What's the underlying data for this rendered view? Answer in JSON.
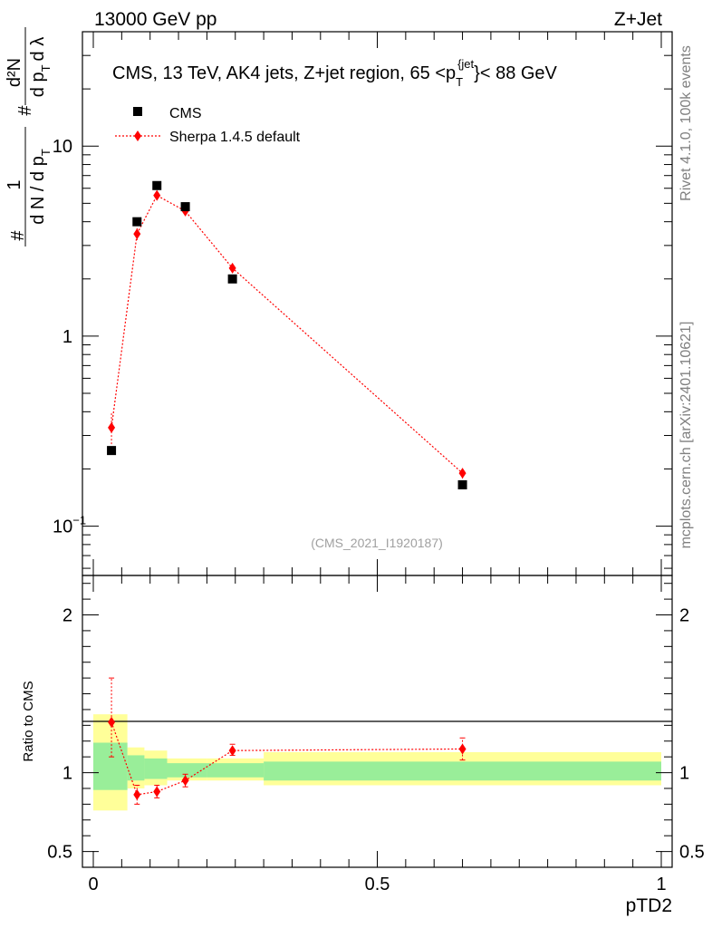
{
  "header": {
    "energy": "13000 GeV pp",
    "process": "Z+Jet",
    "side_rivet": "Rivet 4.1.0,  100k events",
    "side_site": "mcplots.cern.ch [arXiv:2401.10621]",
    "reference": "(CMS_2021_I1920187)"
  },
  "chart_data": {
    "type": "scatter",
    "title_parts": {
      "pre": "CMS, 13 TeV, AK4 jets, Z+jet region, 65 <p",
      "sub": "T",
      "sup": "{jet",
      "post": "}< 88 GeV"
    },
    "xlabel": "pTD2",
    "xlim": [
      0,
      1
    ],
    "x_ticks": [
      {
        "value": 0,
        "label": "0"
      },
      {
        "value": 0.5,
        "label": "0.5"
      },
      {
        "value": 1,
        "label": "1"
      }
    ],
    "main": {
      "yscale": "log",
      "ylim": [
        0.055,
        40
      ],
      "y_ticks": [
        {
          "value": 0.1,
          "label": "10",
          "sup": "−1"
        },
        {
          "value": 1,
          "label": "1"
        },
        {
          "value": 10,
          "label": "10"
        }
      ],
      "ylabel_parts": {
        "hash1": "#",
        "frac1_num": "1",
        "frac1_den": "d N / d p",
        "frac1_den_sub": "T",
        "hash2": "#",
        "frac2_num": "d²N",
        "frac2_den": "d p",
        "frac2_den_sub": "T",
        "frac2_tail": "d λ"
      },
      "legend": [
        {
          "name": "CMS",
          "marker": "square",
          "color": "#000000"
        },
        {
          "name": "Sherpa 1.4.5 default",
          "marker": "diamond",
          "color": "#ff0000"
        }
      ],
      "series": [
        {
          "name": "CMS",
          "x": [
            0.032,
            0.077,
            0.112,
            0.162,
            0.245,
            0.65
          ],
          "y": [
            0.25,
            4.0,
            6.2,
            4.8,
            2.0,
            0.165
          ]
        },
        {
          "name": "Sherpa 1.4.5 default",
          "x": [
            0.032,
            0.077,
            0.112,
            0.162,
            0.245,
            0.65
          ],
          "y": [
            0.33,
            3.45,
            5.5,
            4.55,
            2.28,
            0.19
          ],
          "err_low": [
            0.27,
            3.2,
            5.25,
            4.35,
            2.18,
            0.178
          ],
          "err_high": [
            0.4,
            3.7,
            5.75,
            4.75,
            2.38,
            0.202
          ]
        }
      ]
    },
    "ratio": {
      "ylabel": "Ratio to CMS",
      "ylim": [
        0.4,
        2.25
      ],
      "y_ticks": [
        {
          "value": 0.5,
          "label": "0.5"
        },
        {
          "value": 1,
          "label": "1"
        },
        {
          "value": 2,
          "label": "2"
        }
      ],
      "bands": [
        {
          "x0": 0.0,
          "x1": 0.06,
          "green": [
            0.89,
            1.19
          ],
          "yellow": [
            0.76,
            1.37
          ]
        },
        {
          "x0": 0.06,
          "x1": 0.09,
          "green": [
            0.95,
            1.11
          ],
          "yellow": [
            0.9,
            1.16
          ]
        },
        {
          "x0": 0.09,
          "x1": 0.13,
          "green": [
            0.96,
            1.09
          ],
          "yellow": [
            0.92,
            1.14
          ]
        },
        {
          "x0": 0.13,
          "x1": 0.2,
          "green": [
            0.97,
            1.06
          ],
          "yellow": [
            0.95,
            1.09
          ]
        },
        {
          "x0": 0.2,
          "x1": 0.3,
          "green": [
            0.97,
            1.06
          ],
          "yellow": [
            0.95,
            1.09
          ]
        },
        {
          "x0": 0.3,
          "x1": 1.0,
          "green": [
            0.95,
            1.07
          ],
          "yellow": [
            0.92,
            1.13
          ]
        }
      ],
      "series": {
        "name": "Sherpa 1.4.5 default",
        "x": [
          0.032,
          0.077,
          0.112,
          0.162,
          0.245,
          0.65
        ],
        "y": [
          1.32,
          0.86,
          0.88,
          0.95,
          1.14,
          1.15
        ],
        "err_low": [
          1.1,
          0.8,
          0.84,
          0.91,
          1.11,
          1.08
        ],
        "err_high": [
          1.6,
          0.92,
          0.92,
          0.99,
          1.18,
          1.22
        ]
      }
    }
  }
}
